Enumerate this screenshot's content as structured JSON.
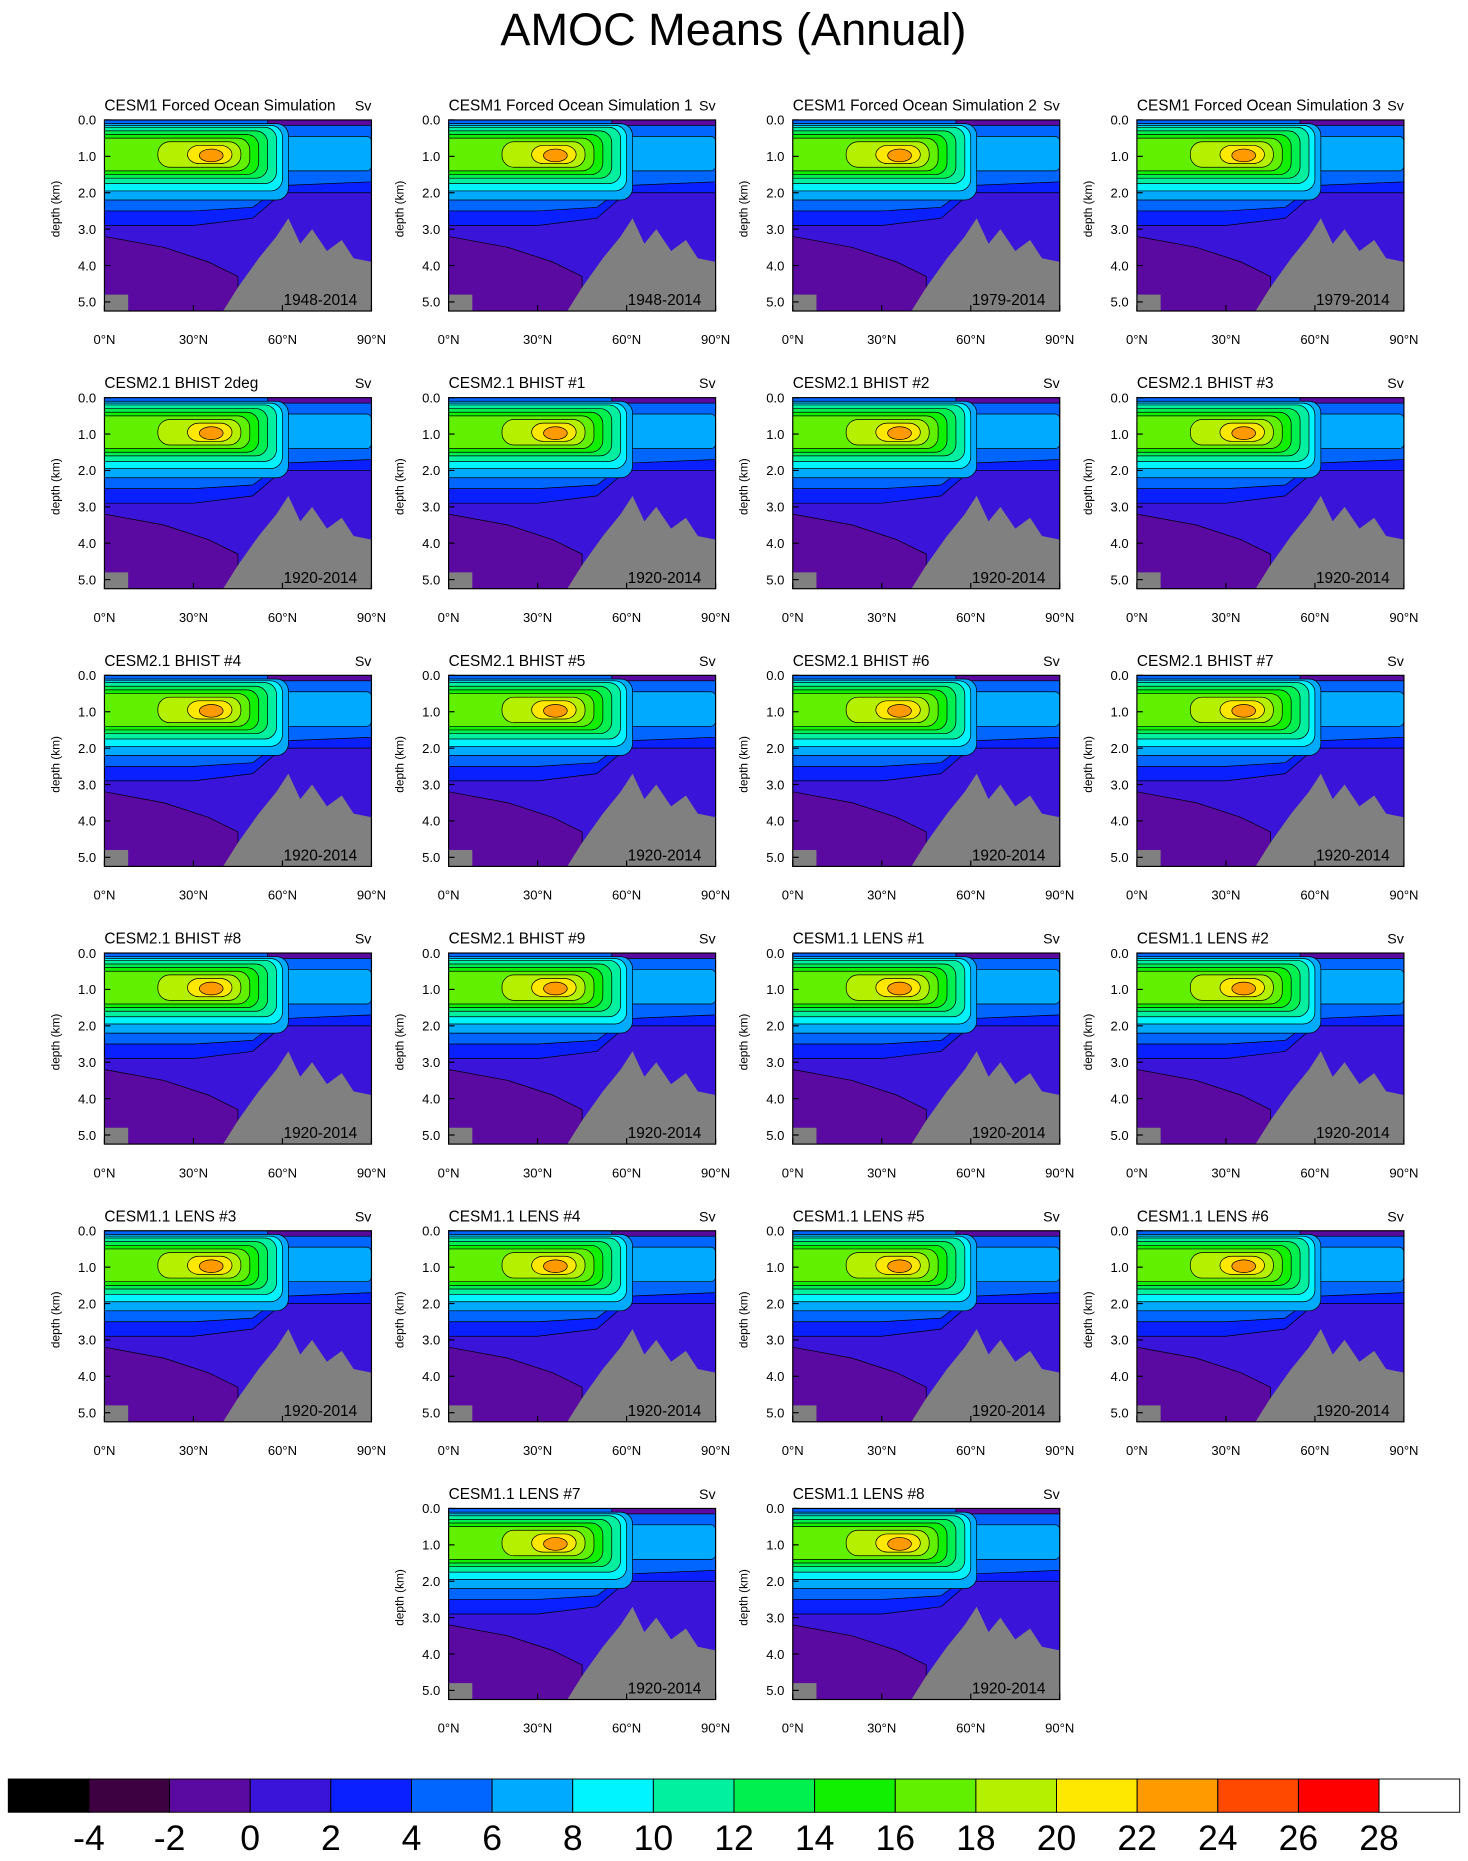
{
  "chart_data": {
    "type": "contour",
    "title": "AMOC Means (Annual)",
    "ylabel": "depth (km)",
    "units": "Sv",
    "xlim": [
      0,
      90
    ],
    "xticks": [
      {
        "value": 0,
        "label": "0°N"
      },
      {
        "value": 30,
        "label": "30°N"
      },
      {
        "value": 60,
        "label": "60°N"
      },
      {
        "value": 90,
        "label": "90°N"
      }
    ],
    "ylim": [
      0,
      5.25
    ],
    "yticks": [
      {
        "value": 0,
        "label": "0.0"
      },
      {
        "value": 1,
        "label": "1.0"
      },
      {
        "value": 2,
        "label": "2.0"
      },
      {
        "value": 3,
        "label": "3.0"
      },
      {
        "value": 4,
        "label": "4.0"
      },
      {
        "value": 5,
        "label": "5.0"
      }
    ],
    "panels": [
      {
        "title": "CESM1 Forced Ocean Simulation",
        "period": "1948-2014"
      },
      {
        "title": "CESM1 Forced Ocean Simulation 1",
        "period": "1948-2014"
      },
      {
        "title": "CESM1 Forced Ocean Simulation 2",
        "period": "1979-2014"
      },
      {
        "title": "CESM1 Forced Ocean Simulation 3",
        "period": "1979-2014"
      },
      {
        "title": "CESM2.1 BHIST 2deg",
        "period": "1920-2014"
      },
      {
        "title": "CESM2.1 BHIST #1",
        "period": "1920-2014"
      },
      {
        "title": "CESM2.1 BHIST #2",
        "period": "1920-2014"
      },
      {
        "title": "CESM2.1 BHIST #3",
        "period": "1920-2014"
      },
      {
        "title": "CESM2.1 BHIST #4",
        "period": "1920-2014"
      },
      {
        "title": "CESM2.1 BHIST #5",
        "period": "1920-2014"
      },
      {
        "title": "CESM2.1 BHIST #6",
        "period": "1920-2014"
      },
      {
        "title": "CESM2.1 BHIST #7",
        "period": "1920-2014"
      },
      {
        "title": "CESM2.1 BHIST #8",
        "period": "1920-2014"
      },
      {
        "title": "CESM2.1 BHIST #9",
        "period": "1920-2014"
      },
      {
        "title": "CESM1.1 LENS #1",
        "period": "1920-2014"
      },
      {
        "title": "CESM1.1 LENS #2",
        "period": "1920-2014"
      },
      {
        "title": "CESM1.1 LENS #3",
        "period": "1920-2014"
      },
      {
        "title": "CESM1.1 LENS #4",
        "period": "1920-2014"
      },
      {
        "title": "CESM1.1 LENS #5",
        "period": "1920-2014"
      },
      {
        "title": "CESM1.1 LENS #6",
        "period": "1920-2014"
      },
      {
        "title": "CESM1.1 LENS #7",
        "period": "1920-2014"
      },
      {
        "title": "CESM1.1 LENS #8",
        "period": "1920-2014"
      }
    ],
    "colorbar": {
      "levels": [
        -4,
        -2,
        0,
        2,
        4,
        6,
        8,
        10,
        12,
        14,
        16,
        18,
        20,
        22,
        24,
        26,
        28
      ],
      "colors": [
        "#000000",
        "#3d0040",
        "#5a0aa0",
        "#3a14d8",
        "#0a20ff",
        "#0066ff",
        "#00aaff",
        "#00f4ff",
        "#00f0a0",
        "#00f050",
        "#10f000",
        "#60f000",
        "#b4f000",
        "#ffe800",
        "#ff9a00",
        "#ff4800",
        "#ff0000",
        "#ffffff"
      ]
    }
  }
}
